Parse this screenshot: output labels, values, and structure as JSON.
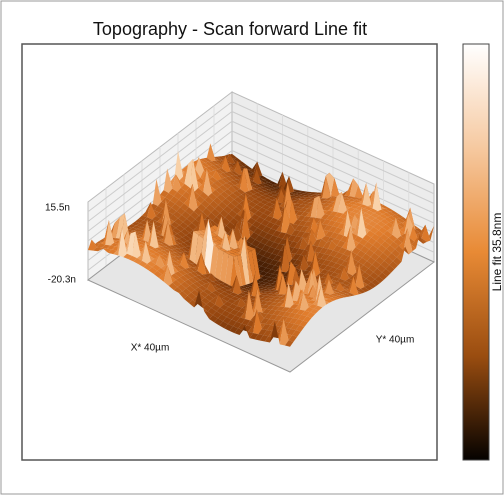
{
  "title": "Topography - Scan forward   Line fit",
  "z_axis": {
    "top_label": "15.5n",
    "bottom_label": "-20.3n"
  },
  "x_axis_label": "X* 40µm",
  "y_axis_label": "Y* 40µm",
  "colorbar_label": "Line fit 35.8nm"
}
